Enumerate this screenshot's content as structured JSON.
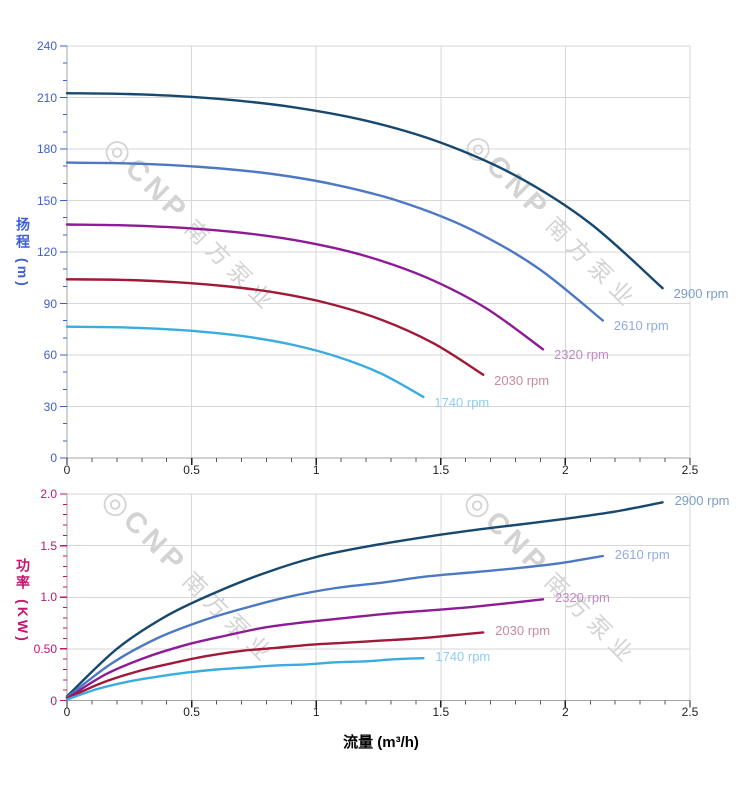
{
  "figure": {
    "x_axis_title": "流量 (m³/h)",
    "watermark": {
      "logo_glyph": "◎",
      "brand": "CNP",
      "brand_cn": "南方泵业"
    },
    "colors": {
      "head_axis": "#3f5ed6",
      "power_axis": "#c4156e",
      "x_tick_text": "#1f1f1f",
      "gridline": "#d7d7d7",
      "axis_line": "#a3a3a3"
    }
  },
  "chart_data": [
    {
      "type": "line",
      "name": "head-vs-flow",
      "title": "",
      "xlabel": "流量 (m³/h)",
      "ylabel": "扬程 (m)",
      "xlim": [
        0,
        2.5
      ],
      "ylim": [
        0,
        240
      ],
      "grid": true,
      "legend_position": "inline-end-of-curve",
      "axis_color": "#3f5ed6",
      "x_tick_values": [
        0,
        0.5,
        1,
        1.5,
        2,
        2.5
      ],
      "x_tick_labels": [
        "0",
        "0.5",
        "1",
        "1.5",
        "2",
        "2.5"
      ],
      "x_minor_step": 0.1,
      "y_tick_values": [
        0,
        30,
        60,
        90,
        120,
        150,
        180,
        210,
        240
      ],
      "y_tick_labels": [
        "0",
        "30",
        "60",
        "90",
        "120",
        "150",
        "180",
        "210",
        "240"
      ],
      "y_minor_step": 10,
      "x_gridlines": [
        0.5,
        1,
        1.5,
        2,
        2.5
      ],
      "y_gridlines": [
        30,
        60,
        90,
        120,
        150,
        180,
        210,
        240
      ],
      "series": [
        {
          "name": "2900 rpm",
          "rpm": 2900,
          "color": "#17486f",
          "label_color": "#7c9dc1",
          "points": [
            [
              0,
              212.5
            ],
            [
              0.3,
              211.8
            ],
            [
              0.6,
              209.3
            ],
            [
              0.9,
              204.5
            ],
            [
              1.2,
              196.5
            ],
            [
              1.5,
              183.7
            ],
            [
              1.8,
              164.5
            ],
            [
              2.1,
              136.6
            ],
            [
              2.39,
              98.9
            ]
          ]
        },
        {
          "name": "2610 rpm",
          "rpm": 2610,
          "color": "#4c78c4",
          "label_color": "#93aadf",
          "points": [
            [
              0,
              172.1
            ],
            [
              0.27,
              171.5
            ],
            [
              0.54,
              169.5
            ],
            [
              0.81,
              165.7
            ],
            [
              1.08,
              159.1
            ],
            [
              1.35,
              148.8
            ],
            [
              1.62,
              133.2
            ],
            [
              1.89,
              110.6
            ],
            [
              2.15,
              80.1
            ]
          ]
        },
        {
          "name": "2320 rpm",
          "rpm": 2320,
          "color": "#8e1b96",
          "label_color": "#c189c6",
          "points": [
            [
              0,
              136
            ],
            [
              0.24,
              135.5
            ],
            [
              0.48,
              133.9
            ],
            [
              0.72,
              130.9
            ],
            [
              0.96,
              125.7
            ],
            [
              1.2,
              117.6
            ],
            [
              1.44,
              105.3
            ],
            [
              1.68,
              87.4
            ],
            [
              1.91,
              63.3
            ]
          ]
        },
        {
          "name": "2030 rpm",
          "rpm": 2030,
          "color": "#a01a38",
          "label_color": "#c88ba1",
          "points": [
            [
              0,
              104.1
            ],
            [
              0.21,
              103.8
            ],
            [
              0.42,
              102.6
            ],
            [
              0.63,
              100.2
            ],
            [
              0.84,
              96.3
            ],
            [
              1.05,
              90
            ],
            [
              1.26,
              80.6
            ],
            [
              1.47,
              66.9
            ],
            [
              1.67,
              48.5
            ]
          ]
        },
        {
          "name": "1740 rpm",
          "rpm": 1740,
          "color": "#3bacdf",
          "label_color": "#8ecdf1",
          "points": [
            [
              0,
              76.5
            ],
            [
              0.18,
              76.2
            ],
            [
              0.36,
              75.3
            ],
            [
              0.54,
              73.6
            ],
            [
              0.72,
              70.7
            ],
            [
              0.9,
              66.1
            ],
            [
              1.08,
              59.2
            ],
            [
              1.26,
              49.2
            ],
            [
              1.43,
              35.6
            ]
          ]
        }
      ]
    },
    {
      "type": "line",
      "name": "power-vs-flow",
      "title": "",
      "xlabel": "流量 (m³/h)",
      "ylabel": "功率 (KW)",
      "xlim": [
        0,
        2.5
      ],
      "ylim": [
        0,
        2.0
      ],
      "grid": true,
      "legend_position": "inline-end-of-curve",
      "axis_color": "#c4156e",
      "x_tick_values": [
        0,
        0.5,
        1,
        1.5,
        2,
        2.5
      ],
      "x_tick_labels": [
        "0",
        "0.5",
        "1",
        "1.5",
        "2",
        "2.5"
      ],
      "x_minor_step": 0.1,
      "y_tick_values": [
        0,
        0.5,
        1,
        1.5,
        2
      ],
      "y_tick_labels": [
        "0",
        "0.50",
        "1.0",
        "1.5",
        "2.0"
      ],
      "y_minor_step": 0.1,
      "x_gridlines": [
        0.5,
        1,
        1.5,
        2,
        2.5
      ],
      "y_gridlines": [
        0.5,
        1,
        1.5,
        2
      ],
      "series": [
        {
          "name": "2900 rpm",
          "rpm": 2900,
          "color": "#17486f",
          "label_color": "#7c9dc1",
          "points": [
            [
              0,
              0.04
            ],
            [
              0.2,
              0.5
            ],
            [
              0.4,
              0.82
            ],
            [
              0.6,
              1.05
            ],
            [
              0.8,
              1.24
            ],
            [
              1,
              1.39
            ],
            [
              1.2,
              1.49
            ],
            [
              1.4,
              1.57
            ],
            [
              1.6,
              1.64
            ],
            [
              1.8,
              1.7
            ],
            [
              2,
              1.76
            ],
            [
              2.2,
              1.83
            ],
            [
              2.39,
              1.92
            ]
          ]
        },
        {
          "name": "2610 rpm",
          "rpm": 2610,
          "color": "#4c78c4",
          "label_color": "#93aadf",
          "points": [
            [
              0,
              0.03
            ],
            [
              0.18,
              0.36
            ],
            [
              0.36,
              0.6
            ],
            [
              0.54,
              0.77
            ],
            [
              0.72,
              0.9
            ],
            [
              0.9,
              1.01
            ],
            [
              1.08,
              1.09
            ],
            [
              1.26,
              1.14
            ],
            [
              1.44,
              1.2
            ],
            [
              1.62,
              1.24
            ],
            [
              1.8,
              1.28
            ],
            [
              1.98,
              1.33
            ],
            [
              2.15,
              1.4
            ]
          ]
        },
        {
          "name": "2320 rpm",
          "rpm": 2320,
          "color": "#8e1b96",
          "label_color": "#c189c6",
          "points": [
            [
              0,
              0.02
            ],
            [
              0.16,
              0.26
            ],
            [
              0.32,
              0.42
            ],
            [
              0.48,
              0.54
            ],
            [
              0.64,
              0.63
            ],
            [
              0.8,
              0.71
            ],
            [
              0.96,
              0.76
            ],
            [
              1.12,
              0.8
            ],
            [
              1.28,
              0.84
            ],
            [
              1.44,
              0.87
            ],
            [
              1.6,
              0.9
            ],
            [
              1.76,
              0.94
            ],
            [
              1.91,
              0.98
            ]
          ]
        },
        {
          "name": "2030 rpm",
          "rpm": 2030,
          "color": "#a01a38",
          "label_color": "#c88ba1",
          "points": [
            [
              0,
              0.02
            ],
            [
              0.14,
              0.17
            ],
            [
              0.28,
              0.28
            ],
            [
              0.42,
              0.36
            ],
            [
              0.56,
              0.43
            ],
            [
              0.7,
              0.48
            ],
            [
              0.84,
              0.51
            ],
            [
              0.98,
              0.54
            ],
            [
              1.12,
              0.56
            ],
            [
              1.26,
              0.58
            ],
            [
              1.4,
              0.6
            ],
            [
              1.54,
              0.63
            ],
            [
              1.67,
              0.66
            ]
          ]
        },
        {
          "name": "1740 rpm",
          "rpm": 1740,
          "color": "#3bacdf",
          "label_color": "#8ecdf1",
          "points": [
            [
              0,
              0.01
            ],
            [
              0.12,
              0.11
            ],
            [
              0.24,
              0.18
            ],
            [
              0.36,
              0.23
            ],
            [
              0.48,
              0.27
            ],
            [
              0.6,
              0.3
            ],
            [
              0.72,
              0.32
            ],
            [
              0.84,
              0.34
            ],
            [
              0.96,
              0.35
            ],
            [
              1.08,
              0.37
            ],
            [
              1.2,
              0.38
            ],
            [
              1.32,
              0.4
            ],
            [
              1.43,
              0.41
            ]
          ]
        }
      ]
    }
  ]
}
